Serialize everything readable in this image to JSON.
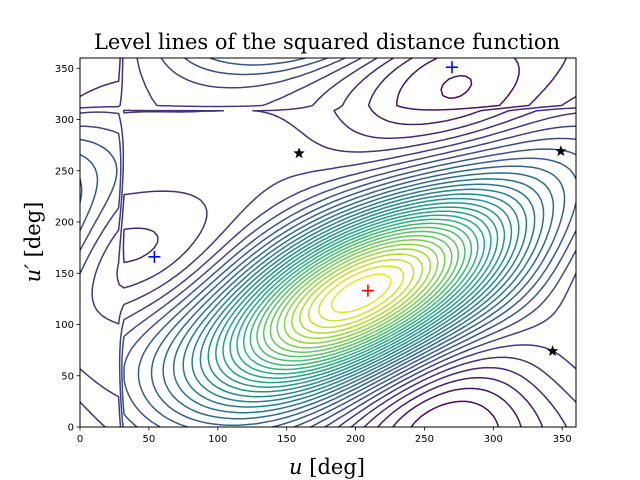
{
  "chart_data": {
    "type": "contour",
    "title": "Level lines of the squared distance function",
    "xlabel": "u [deg]",
    "ylabel": "u′ [deg]",
    "xlim": [
      0,
      360
    ],
    "ylim": [
      0,
      360
    ],
    "x_ticks": [
      0,
      50,
      100,
      150,
      200,
      250,
      300,
      350
    ],
    "y_ticks": [
      0,
      50,
      100,
      150,
      200,
      250,
      300,
      350
    ],
    "x_tick_labels": [
      "0",
      "50",
      "100",
      "150",
      "200",
      "250",
      "300",
      "350"
    ],
    "y_tick_labels": [
      "0",
      "50",
      "100",
      "150",
      "200",
      "250",
      "300",
      "350"
    ],
    "colormap": "viridis",
    "grid": false,
    "legend": "none",
    "markers": [
      {
        "kind": "minimum",
        "symbol": "plus",
        "color": "#0000ff",
        "x": 54,
        "y": 166
      },
      {
        "kind": "minimum",
        "symbol": "plus",
        "color": "#0000ff",
        "x": 270,
        "y": 351
      },
      {
        "kind": "maximum",
        "symbol": "plus",
        "color": "#ff0000",
        "x": 209,
        "y": 133
      },
      {
        "kind": "saddle",
        "symbol": "star",
        "color": "#000000",
        "x": 159,
        "y": 267
      },
      {
        "kind": "saddle",
        "symbol": "star",
        "color": "#000000",
        "x": 349,
        "y": 269
      },
      {
        "kind": "saddle",
        "symbol": "star",
        "color": "#000000",
        "x": 343,
        "y": 74
      }
    ]
  }
}
